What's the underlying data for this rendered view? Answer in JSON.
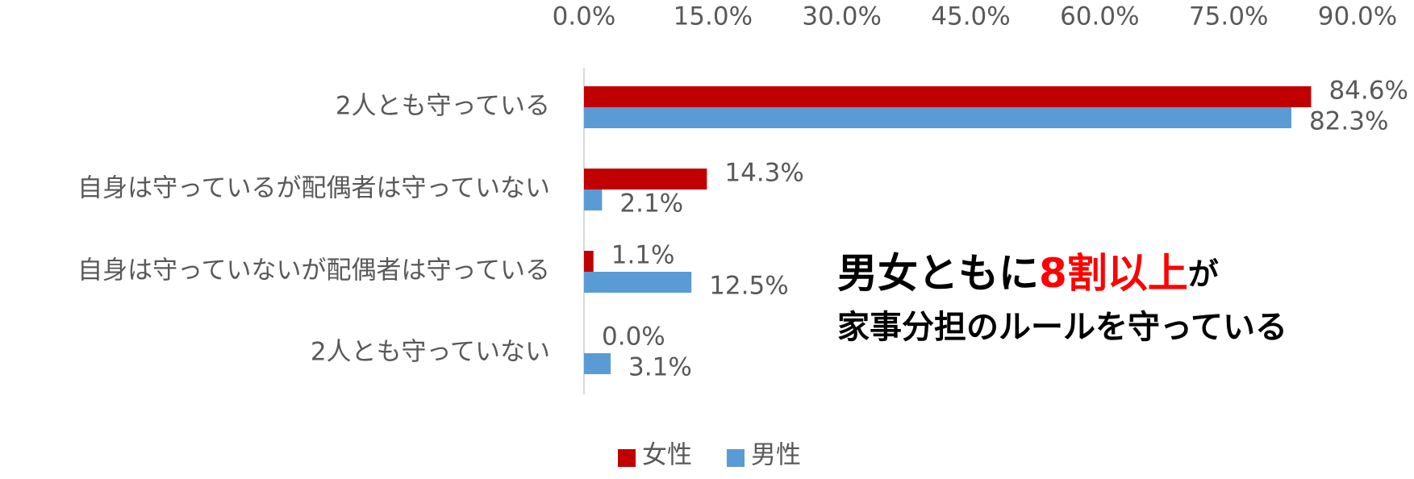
{
  "chart_data": {
    "type": "bar",
    "orientation": "horizontal",
    "categories": [
      "2人とも守っている",
      "自身は守っているが配偶者は守っていない",
      "自身は守っていないが配偶者は守っている",
      "2人とも守っていない"
    ],
    "series": [
      {
        "name": "女性",
        "color": "#c00000",
        "values": [
          84.6,
          14.3,
          1.1,
          0.0
        ],
        "value_labels": [
          "84.6%",
          "14.3%",
          "1.1%",
          "0.0%"
        ]
      },
      {
        "name": "男性",
        "color": "#5b9bd5",
        "values": [
          82.3,
          2.1,
          12.5,
          3.1
        ],
        "value_labels": [
          "82.3%",
          "2.1%",
          "12.5%",
          "3.1%"
        ]
      }
    ],
    "xlim": [
      0,
      90
    ],
    "xticks": [
      {
        "value": 0,
        "label": "0.0%"
      },
      {
        "value": 15,
        "label": "15.0%"
      },
      {
        "value": 30,
        "label": "30.0%"
      },
      {
        "value": 45,
        "label": "45.0%"
      },
      {
        "value": 60,
        "label": "60.0%"
      },
      {
        "value": 75,
        "label": "75.0%"
      },
      {
        "value": 90,
        "label": "90.0%"
      }
    ],
    "legend": "bottom",
    "annotation": {
      "line1": [
        {
          "text": "男女ともに",
          "color": "#000000"
        },
        {
          "text": "8割以上",
          "color": "#ff0000"
        },
        {
          "text": "が",
          "color": "#000000"
        }
      ],
      "line2": "家事分担のルールを守っている"
    }
  }
}
